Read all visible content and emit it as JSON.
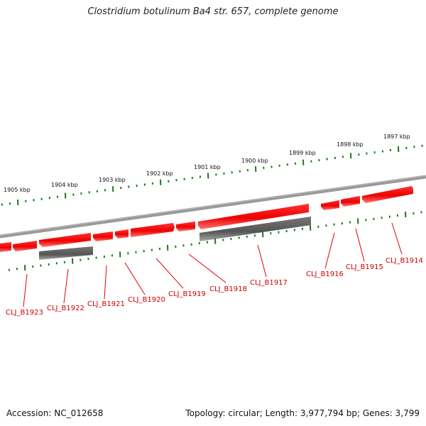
{
  "title": "Clostridium botulinum Ba4 str. 657, complete genome",
  "footer": {
    "accession": "Accession: NC_012658",
    "summary": "Topology: circular; Length: 3,977,794 bp; Genes: 3,799"
  },
  "scale_labels": [
    "1905 kbp",
    "1904 kbp",
    "1903 kbp",
    "1902 kbp",
    "1901 kbp",
    "1900 kbp",
    "1899 kbp",
    "1898 kbp",
    "1897 kbp"
  ],
  "genes": [
    {
      "id": "CLJ_B1923",
      "color": "#ff0000"
    },
    {
      "id": "CLJ_B1922",
      "color": "#ff0000"
    },
    {
      "id": "CLJ_B1921",
      "color": "#ff0000"
    },
    {
      "id": "CLJ_B1920",
      "color": "#ff0000"
    },
    {
      "id": "CLJ_B1919",
      "color": "#ff0000"
    },
    {
      "id": "CLJ_B1918",
      "color": "#ff0000"
    },
    {
      "id": "CLJ_B1917",
      "color": "#ff0000"
    },
    {
      "id": "CLJ_B1916",
      "color": "#ff0000"
    },
    {
      "id": "CLJ_B1915",
      "color": "#ff0000"
    },
    {
      "id": "CLJ_B1914",
      "color": "#ff0000"
    }
  ],
  "colors": {
    "gene": "#ff0000",
    "gene_shadow": "#ff7777",
    "secondary_feature": "#666666",
    "backbone": "#888888",
    "tick": "#1a7a1a",
    "label": "#cc0000"
  }
}
